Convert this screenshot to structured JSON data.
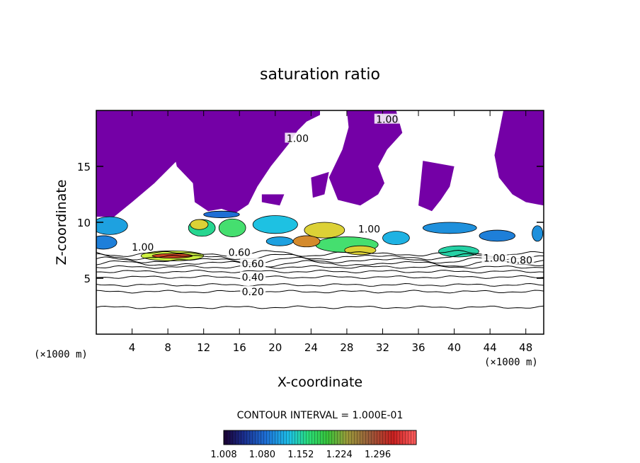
{
  "chart_data": {
    "type": "heatmap",
    "title": "saturation ratio",
    "xlabel": "X-coordinate",
    "ylabel": "Z-coordinate",
    "x_unit_left": "(×1000 m)",
    "x_unit_right": "(×1000 m)",
    "xlim": [
      0,
      50
    ],
    "ylim": [
      0,
      20
    ],
    "x_ticks": [
      4,
      8,
      12,
      16,
      20,
      24,
      28,
      32,
      36,
      40,
      44,
      48
    ],
    "y_ticks": [
      5,
      10,
      15
    ],
    "contour_interval_text": "CONTOUR INTERVAL = 1.000E-01",
    "contour_levels": [
      0.1,
      0.2,
      0.3,
      0.4,
      0.5,
      0.6,
      0.7,
      0.8,
      0.9,
      1.0
    ],
    "contour_labels": [
      {
        "text": "0.20",
        "x": 17.5,
        "y": 3.8
      },
      {
        "text": "0.40",
        "x": 17.5,
        "y": 5.1
      },
      {
        "text": "0.60",
        "x": 17.5,
        "y": 6.3
      },
      {
        "text": "0.60",
        "x": 16.0,
        "y": 7.3
      },
      {
        "text": "0.80",
        "x": 47.5,
        "y": 6.6
      },
      {
        "text": "1.00",
        "x": 5.2,
        "y": 7.8
      },
      {
        "text": "1.00",
        "x": 44.5,
        "y": 6.8
      },
      {
        "text": "1.00",
        "x": 30.5,
        "y": 9.4
      },
      {
        "text": "1.00",
        "x": 32.5,
        "y": 19.2
      },
      {
        "text": "1.00",
        "x": 22.5,
        "y": 17.5
      }
    ],
    "colorbar": {
      "min": 1.008,
      "max": 1.368,
      "tick_values": [
        1.008,
        1.08,
        1.152,
        1.224,
        1.296
      ],
      "tick_labels": [
        "1.008",
        "1.080",
        "1.152",
        "1.224",
        "1.296"
      ]
    },
    "colors": {
      "subsat_region": "#7400a6",
      "low": "#1a2c8a",
      "mid_low": "#1ea0e6",
      "mid": "#2adc78",
      "high": "#e0f23a",
      "max": "#c81e1e"
    },
    "supersaturated_cells": [
      {
        "x": 8.5,
        "y": 7.0,
        "w": 7,
        "h": 0.9,
        "v": 1.2
      },
      {
        "x": 8.5,
        "y": 7.0,
        "w": 4.5,
        "h": 0.4,
        "v": 1.28
      },
      {
        "x": 1.5,
        "y": 9.7,
        "w": 4,
        "h": 1.6,
        "v": 1.08
      },
      {
        "x": 0.8,
        "y": 8.2,
        "w": 3,
        "h": 1.2,
        "v": 1.06
      },
      {
        "x": 11.8,
        "y": 9.5,
        "w": 3,
        "h": 1.5,
        "v": 1.14
      },
      {
        "x": 11.5,
        "y": 9.8,
        "w": 2,
        "h": 0.9,
        "v": 1.22
      },
      {
        "x": 15.2,
        "y": 9.5,
        "w": 3,
        "h": 1.6,
        "v": 1.16
      },
      {
        "x": 20.0,
        "y": 9.8,
        "w": 5,
        "h": 1.6,
        "v": 1.1
      },
      {
        "x": 25.5,
        "y": 9.3,
        "w": 4.5,
        "h": 1.4,
        "v": 1.22
      },
      {
        "x": 28.0,
        "y": 8.0,
        "w": 7,
        "h": 1.4,
        "v": 1.16
      },
      {
        "x": 23.5,
        "y": 8.3,
        "w": 3,
        "h": 1.0,
        "v": 1.25
      },
      {
        "x": 29.5,
        "y": 7.5,
        "w": 3.5,
        "h": 0.8,
        "v": 1.22
      },
      {
        "x": 20.5,
        "y": 8.3,
        "w": 3,
        "h": 0.8,
        "v": 1.08
      },
      {
        "x": 33.5,
        "y": 8.6,
        "w": 3,
        "h": 1.2,
        "v": 1.09
      },
      {
        "x": 40.5,
        "y": 7.4,
        "w": 4.5,
        "h": 1.0,
        "v": 1.13
      },
      {
        "x": 39.5,
        "y": 9.5,
        "w": 6,
        "h": 1.0,
        "v": 1.07
      },
      {
        "x": 44.8,
        "y": 8.8,
        "w": 4,
        "h": 1.0,
        "v": 1.06
      },
      {
        "x": 49.3,
        "y": 9.0,
        "w": 1.2,
        "h": 1.4,
        "v": 1.07
      },
      {
        "x": 14.0,
        "y": 10.7,
        "w": 4,
        "h": 0.6,
        "v": 1.05
      }
    ]
  }
}
